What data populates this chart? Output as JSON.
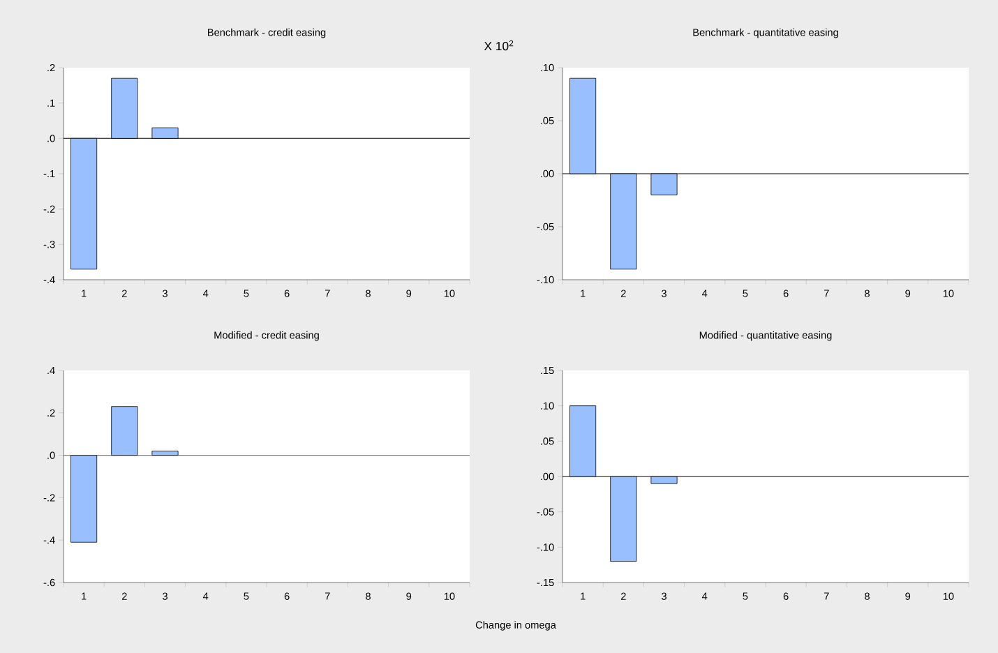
{
  "chart_data": [
    {
      "type": "bar",
      "title": "Benchmark - credit easing",
      "categories": [
        "1",
        "2",
        "3",
        "4",
        "5",
        "6",
        "7",
        "8",
        "9",
        "10"
      ],
      "values": [
        -0.37,
        0.17,
        0.03,
        0,
        0,
        0,
        0,
        0,
        0,
        0
      ],
      "color": "#99bfff",
      "ylim": [
        -0.4,
        0.2
      ],
      "yticks": [
        {
          "value": -0.4,
          "label": "-.4"
        },
        {
          "value": -0.3,
          "label": "-.3"
        },
        {
          "value": -0.2,
          "label": "-.2"
        },
        {
          "value": -0.1,
          "label": "-.1"
        },
        {
          "value": 0,
          "label": ".0"
        },
        {
          "value": 0.1,
          "label": ".1"
        },
        {
          "value": 0.2,
          "label": ".2"
        }
      ],
      "ref_lines": [
        {
          "axis": "y",
          "value": 0,
          "color": "#000000"
        }
      ]
    },
    {
      "type": "bar",
      "title": "Benchmark - quantitative easing",
      "annotations": [
        "X 10$^{2}$"
      ],
      "categories": [
        "1",
        "2",
        "3",
        "4",
        "5",
        "6",
        "7",
        "8",
        "9",
        "10"
      ],
      "values": [
        0.09,
        -0.09,
        -0.02,
        0,
        0,
        0,
        0,
        0,
        0,
        0
      ],
      "color": "#99bfff",
      "ylim": [
        -0.1,
        0.1
      ],
      "yticks": [
        {
          "value": -0.1,
          "label": "-.10"
        },
        {
          "value": -0.05,
          "label": "-.05"
        },
        {
          "value": 0,
          "label": ".00"
        },
        {
          "value": 0.05,
          "label": ".05"
        },
        {
          "value": 0.1,
          "label": ".10"
        }
      ],
      "ref_lines": [
        {
          "axis": "y",
          "value": 0,
          "color": "#000000"
        }
      ]
    },
    {
      "type": "bar",
      "title": "Modified - credit easing",
      "xlabel": "Change in omega",
      "categories": [
        "1",
        "2",
        "3",
        "4",
        "5",
        "6",
        "7",
        "8",
        "9",
        "10"
      ],
      "values": [
        -0.41,
        0.23,
        0.02,
        0,
        0,
        0,
        0,
        0,
        0,
        0
      ],
      "color": "#99bfff",
      "ylim": [
        -0.6,
        0.4
      ],
      "yticks": [
        {
          "value": -0.6,
          "label": "-.6"
        },
        {
          "value": -0.4,
          "label": "-.4"
        },
        {
          "value": -0.2,
          "label": "-.2"
        },
        {
          "value": 0,
          "label": ".0"
        },
        {
          "value": 0.2,
          "label": ".2"
        },
        {
          "value": 0.4,
          "label": ".4"
        }
      ],
      "ref_lines": [
        {
          "axis": "y",
          "value": 0,
          "color": "#808080"
        }
      ]
    },
    {
      "type": "bar",
      "title": "Modified - quantitative easing",
      "categories": [
        "1",
        "2",
        "3",
        "4",
        "5",
        "6",
        "7",
        "8",
        "9",
        "10"
      ],
      "values": [
        0.1,
        -0.12,
        -0.01,
        0,
        0,
        0,
        0,
        0,
        0,
        0
      ],
      "color": "#99bfff",
      "ylim": [
        -0.15,
        0.15
      ],
      "yticks": [
        {
          "value": -0.15,
          "label": "-.15"
        },
        {
          "value": -0.1,
          "label": "-.10"
        },
        {
          "value": -0.05,
          "label": "-.05"
        },
        {
          "value": 0,
          "label": ".00"
        },
        {
          "value": 0.05,
          "label": ".05"
        },
        {
          "value": 0.1,
          "label": ".10"
        },
        {
          "value": 0.15,
          "label": ".15"
        }
      ],
      "ref_lines": [
        {
          "axis": "y",
          "value": 0,
          "color": "#000000"
        }
      ]
    }
  ]
}
